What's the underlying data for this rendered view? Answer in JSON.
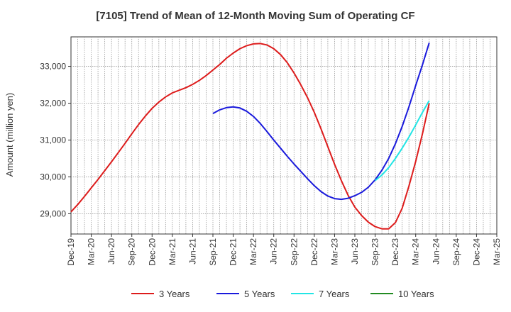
{
  "chart_data": {
    "type": "line",
    "title": "[7105]  Trend of Mean of 12-Month Moving Sum of Operating CF",
    "xlabel": "",
    "ylabel": "Amount (million yen)",
    "ylim": [
      28450,
      33800
    ],
    "yticks": [
      29000,
      30000,
      31000,
      32000,
      33000
    ],
    "ytick_labels": [
      "29,000",
      "30,000",
      "31,000",
      "32,000",
      "33,000"
    ],
    "xticks": [
      "Dec-19",
      "Mar-20",
      "Jun-20",
      "Sep-20",
      "Dec-20",
      "Mar-21",
      "Jun-21",
      "Sep-21",
      "Dec-21",
      "Mar-22",
      "Jun-22",
      "Sep-22",
      "Dec-22",
      "Mar-23",
      "Jun-23",
      "Sep-23",
      "Dec-23",
      "Mar-24",
      "Jun-24",
      "Sep-24",
      "Dec-24",
      "Mar-25"
    ],
    "grid": true,
    "legend_position": "bottom",
    "series": [
      {
        "name": "3 Years",
        "color": "#dd1c1c",
        "start_month": 0,
        "values": [
          29050,
          29250,
          29470,
          29700,
          29930,
          30170,
          30410,
          30660,
          30910,
          31170,
          31420,
          31650,
          31860,
          32030,
          32170,
          32280,
          32350,
          32420,
          32510,
          32620,
          32750,
          32900,
          33050,
          33220,
          33360,
          33480,
          33560,
          33610,
          33620,
          33580,
          33480,
          33320,
          33100,
          32820,
          32500,
          32150,
          31750,
          31300,
          30820,
          30340,
          29900,
          29500,
          29180,
          28950,
          28770,
          28650,
          28590,
          28590,
          28760,
          29150,
          29750,
          30420,
          31170,
          32000
        ]
      },
      {
        "name": "5 Years",
        "color": "#1a1adc",
        "start_month": 21,
        "values": [
          31720,
          31820,
          31880,
          31900,
          31870,
          31780,
          31640,
          31450,
          31230,
          31000,
          30780,
          30560,
          30350,
          30150,
          29950,
          29760,
          29600,
          29480,
          29410,
          29390,
          29420,
          29490,
          29580,
          29720,
          29920,
          30180,
          30500,
          30900,
          31370,
          31900,
          32480,
          33040,
          33640
        ]
      },
      {
        "name": "7 Years",
        "color": "#22e5e5",
        "start_month": 45,
        "values": [
          29900,
          30050,
          30250,
          30500,
          30780,
          31080,
          31410,
          31750,
          32070
        ]
      },
      {
        "name": "10 Years",
        "color": "#228b22",
        "start_month": 0,
        "values": []
      }
    ]
  }
}
